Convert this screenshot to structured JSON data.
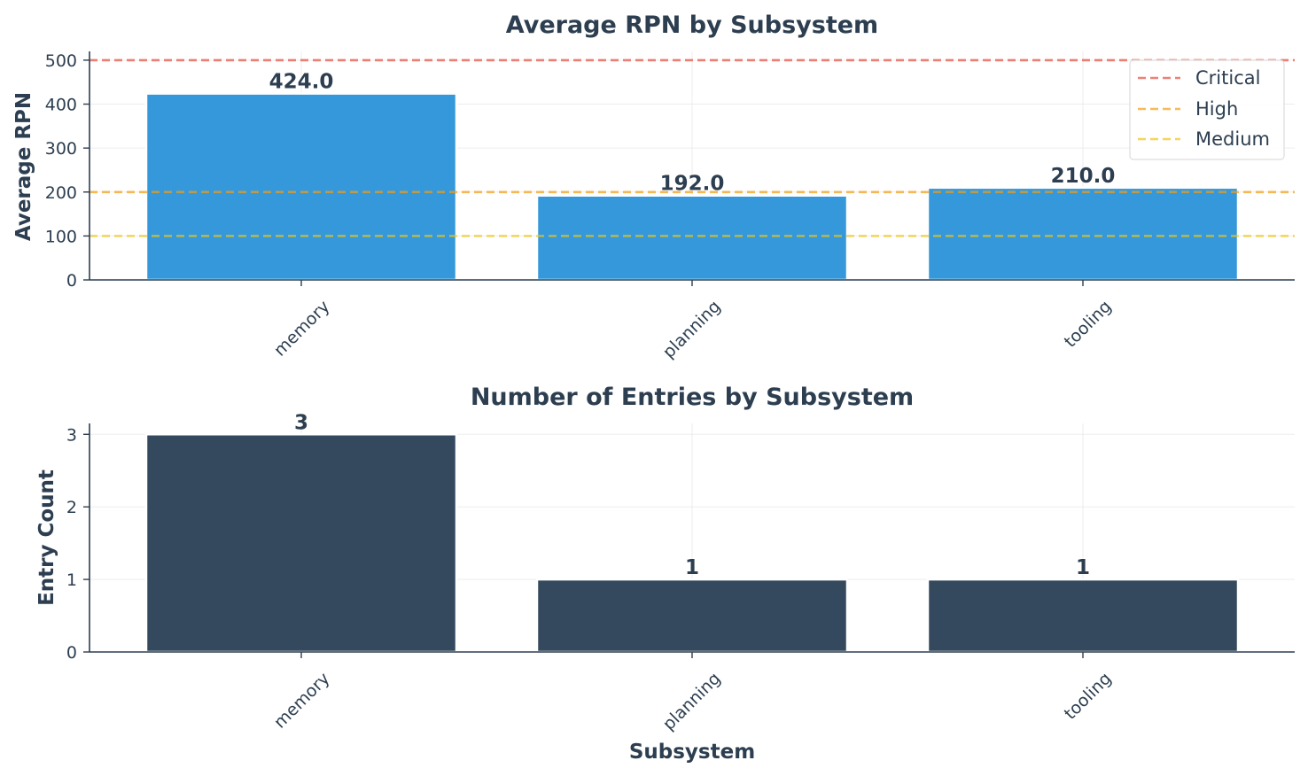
{
  "chart_data": [
    {
      "type": "bar",
      "title": "Average RPN by Subsystem",
      "xlabel": "",
      "ylabel": "Average RPN",
      "categories": [
        "memory",
        "planning",
        "tooling"
      ],
      "values": [
        424.0,
        192.0,
        210.0
      ],
      "value_labels": [
        "424.0",
        "192.0",
        "210.0"
      ],
      "ylim": [
        0,
        520
      ],
      "yticks": [
        0,
        100,
        200,
        300,
        400,
        500
      ],
      "bar_color": "#3498db",
      "grid": true,
      "legend_position": "top-right",
      "thresholds": [
        {
          "name": "Critical",
          "value": 500,
          "color": "#e74c3c"
        },
        {
          "name": "High",
          "value": 200,
          "color": "#f39c12"
        },
        {
          "name": "Medium",
          "value": 100,
          "color": "#f1c40f"
        }
      ]
    },
    {
      "type": "bar",
      "title": "Number of Entries by Subsystem",
      "xlabel": "Subsystem",
      "ylabel": "Entry Count",
      "categories": [
        "memory",
        "planning",
        "tooling"
      ],
      "values": [
        3,
        1,
        1
      ],
      "value_labels": [
        "3",
        "1",
        "1"
      ],
      "ylim": [
        0,
        3.15
      ],
      "yticks": [
        0,
        1,
        2,
        3
      ],
      "bar_color": "#34495e",
      "grid": true
    }
  ]
}
